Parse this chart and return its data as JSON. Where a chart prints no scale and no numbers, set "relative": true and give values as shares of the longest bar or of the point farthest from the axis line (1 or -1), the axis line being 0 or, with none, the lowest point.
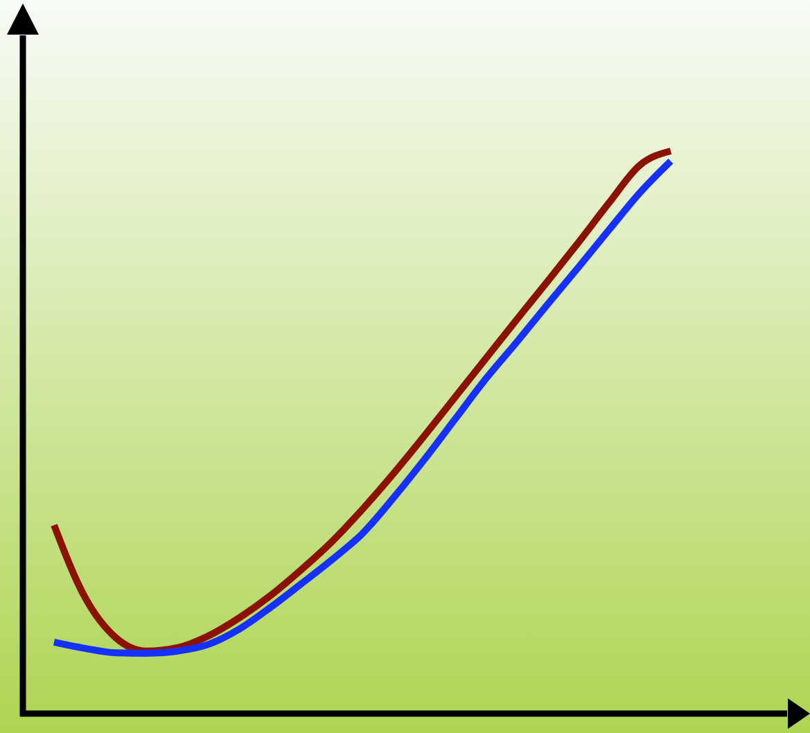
{
  "chart_data": {
    "type": "line",
    "relative": true,
    "categories": [
      null,
      null,
      null,
      null,
      null,
      null,
      null,
      null,
      null,
      null,
      null,
      null,
      null,
      null,
      null,
      null,
      null,
      null,
      null,
      null,
      null
    ],
    "series": [
      {
        "color": "#8b1200",
        "values": [
          0.335,
          0.207,
          0.135,
          0.111,
          0.117,
          0.138,
          0.17,
          0.209,
          0.255,
          0.305,
          0.363,
          0.426,
          0.493,
          0.562,
          0.631,
          0.7,
          0.768,
          0.837,
          0.908,
          0.975,
          1
        ]
      },
      {
        "color": "#1631ff",
        "values": [
          0.127,
          0.116,
          0.108,
          0.107,
          0.111,
          0.123,
          0.15,
          0.188,
          0.23,
          0.273,
          0.32,
          0.383,
          0.451,
          0.523,
          0.595,
          0.66,
          0.727,
          0.793,
          0.86,
          0.926,
          0.982
        ]
      }
    ]
  }
}
